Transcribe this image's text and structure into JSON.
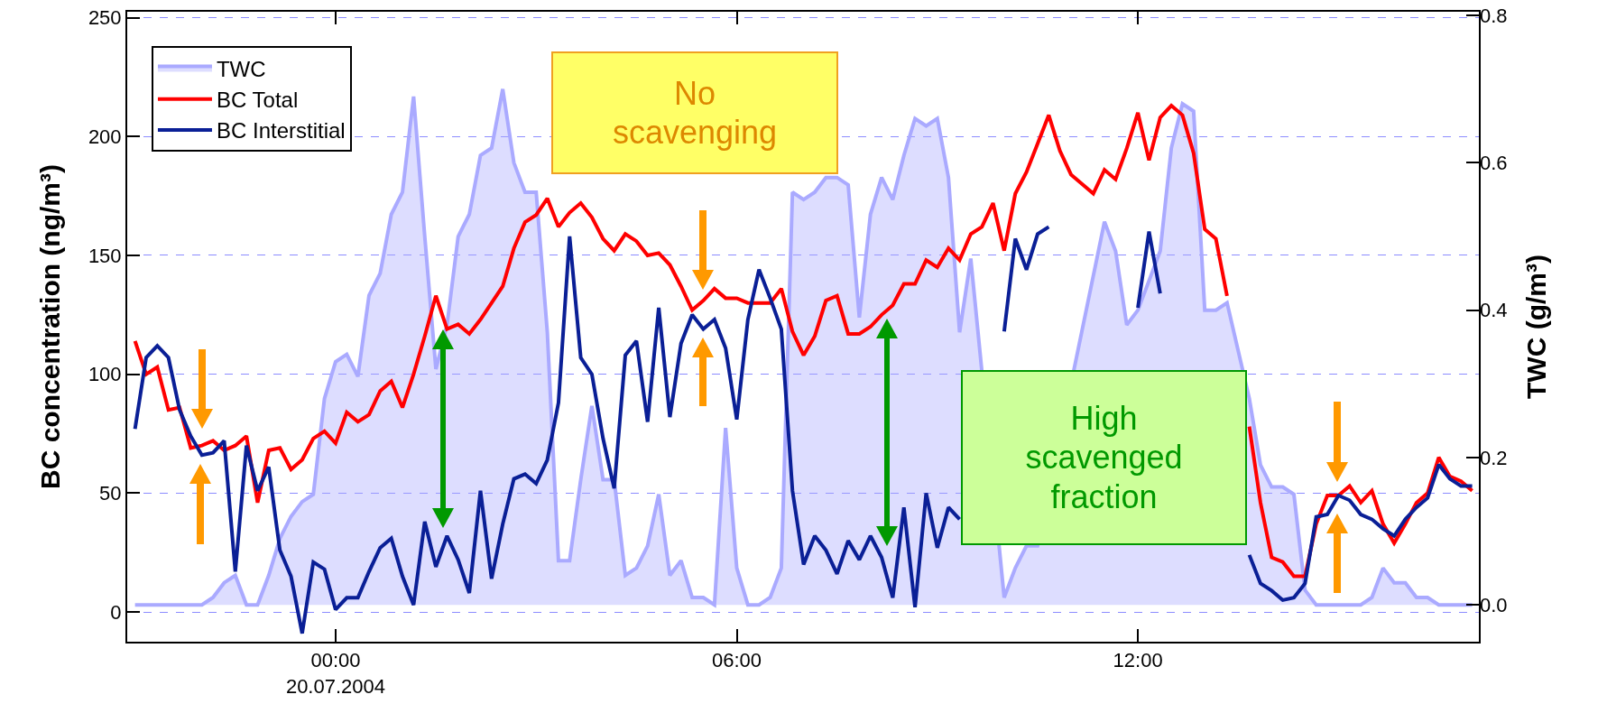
{
  "chart_data": {
    "type": "line",
    "ylabel": "BC concentration (ng/m³)",
    "y2label": "TWC (g/m³)",
    "annotations": [
      "No scavenging",
      "High scavenged fraction"
    ],
    "x": [
      "2004-07-19T21:00",
      "2004-07-19T21:10",
      "2004-07-19T21:20",
      "2004-07-19T21:30",
      "2004-07-19T21:40",
      "2004-07-19T21:50",
      "2004-07-19T22:00",
      "2004-07-19T22:10",
      "2004-07-19T22:20",
      "2004-07-19T22:30",
      "2004-07-19T22:40",
      "2004-07-19T22:50",
      "2004-07-19T23:00",
      "2004-07-19T23:10",
      "2004-07-19T23:20",
      "2004-07-19T23:30",
      "2004-07-19T23:40",
      "2004-07-19T23:50",
      "2004-07-20T00:00",
      "2004-07-20T00:10",
      "2004-07-20T00:20",
      "2004-07-20T00:30",
      "2004-07-20T00:40",
      "2004-07-20T00:50",
      "2004-07-20T01:00",
      "2004-07-20T01:10",
      "2004-07-20T01:20",
      "2004-07-20T01:30",
      "2004-07-20T01:40",
      "2004-07-20T01:50",
      "2004-07-20T02:00",
      "2004-07-20T02:10",
      "2004-07-20T02:20",
      "2004-07-20T02:30",
      "2004-07-20T02:40",
      "2004-07-20T02:50",
      "2004-07-20T03:00",
      "2004-07-20T03:10",
      "2004-07-20T03:20",
      "2004-07-20T03:30",
      "2004-07-20T03:40",
      "2004-07-20T03:50",
      "2004-07-20T04:00",
      "2004-07-20T04:10",
      "2004-07-20T04:20",
      "2004-07-20T04:30",
      "2004-07-20T04:40",
      "2004-07-20T04:50",
      "2004-07-20T05:00",
      "2004-07-20T05:10",
      "2004-07-20T05:20",
      "2004-07-20T05:30",
      "2004-07-20T05:40",
      "2004-07-20T05:50",
      "2004-07-20T06:00",
      "2004-07-20T06:10",
      "2004-07-20T06:20",
      "2004-07-20T06:30",
      "2004-07-20T06:40",
      "2004-07-20T06:50",
      "2004-07-20T07:00",
      "2004-07-20T07:10",
      "2004-07-20T07:20",
      "2004-07-20T07:30",
      "2004-07-20T07:40",
      "2004-07-20T07:50",
      "2004-07-20T08:00",
      "2004-07-20T08:10",
      "2004-07-20T08:20",
      "2004-07-20T08:30",
      "2004-07-20T08:40",
      "2004-07-20T08:50",
      "2004-07-20T09:00",
      "2004-07-20T09:10",
      "2004-07-20T09:20",
      "2004-07-20T09:30",
      "2004-07-20T09:40",
      "2004-07-20T09:50",
      "2004-07-20T10:00",
      "2004-07-20T10:10",
      "2004-07-20T10:20",
      "2004-07-20T10:30",
      "2004-07-20T10:40",
      "2004-07-20T10:50",
      "2004-07-20T11:00",
      "2004-07-20T11:10",
      "2004-07-20T11:20",
      "2004-07-20T11:30",
      "2004-07-20T11:40",
      "2004-07-20T11:50",
      "2004-07-20T12:00",
      "2004-07-20T12:10",
      "2004-07-20T12:20",
      "2004-07-20T12:30",
      "2004-07-20T12:40",
      "2004-07-20T12:50",
      "2004-07-20T13:00",
      "2004-07-20T13:10",
      "2004-07-20T13:20",
      "2004-07-20T13:30",
      "2004-07-20T13:40",
      "2004-07-20T13:50",
      "2004-07-20T14:00",
      "2004-07-20T14:10",
      "2004-07-20T14:20",
      "2004-07-20T14:30",
      "2004-07-20T14:40",
      "2004-07-20T14:50",
      "2004-07-20T15:00",
      "2004-07-20T15:10",
      "2004-07-20T15:20",
      "2004-07-20T15:30",
      "2004-07-20T15:40",
      "2004-07-20T15:50",
      "2004-07-20T16:00",
      "2004-07-20T16:10",
      "2004-07-20T16:20",
      "2004-07-20T16:30",
      "2004-07-20T16:40",
      "2004-07-20T16:50",
      "2004-07-20T17:00"
    ],
    "series": [
      {
        "name": "TWC",
        "type": "area",
        "axis": "y2",
        "color": "#aaaaff",
        "values": [
          0,
          0,
          0,
          0,
          0,
          0,
          0,
          0.01,
          0.03,
          0.04,
          0,
          0,
          0.04,
          0.09,
          0.12,
          0.14,
          0.15,
          0.28,
          0.33,
          0.34,
          0.31,
          0.42,
          0.45,
          0.53,
          0.56,
          0.69,
          0.5,
          0.32,
          0.38,
          0.5,
          0.53,
          0.61,
          0.62,
          0.7,
          0.6,
          0.56,
          0.56,
          0.37,
          0.06,
          0.06,
          0.17,
          0.27,
          0.17,
          0.17,
          0.04,
          0.05,
          0.08,
          0.15,
          0.04,
          0.06,
          0.01,
          0.01,
          0,
          0.24,
          0.05,
          0,
          0,
          0.01,
          0.05,
          0.56,
          0.55,
          0.56,
          0.58,
          0.58,
          0.57,
          0.39,
          0.53,
          0.58,
          0.55,
          0.61,
          0.66,
          0.65,
          0.66,
          0.58,
          0.37,
          0.47,
          null,
          null,
          0.01,
          0.05,
          0.08,
          0.08,
          null,
          null,
          null,
          null,
          null,
          0.52,
          0.48,
          0.38,
          0.4,
          null,
          0.48,
          0.62,
          0.68,
          0.67,
          0.4,
          0.4,
          0.41,
          null,
          0.28,
          0.19,
          0.16,
          0.16,
          0.15,
          0.02,
          0,
          0,
          0,
          0,
          0,
          0.01,
          0.05,
          0.03,
          0.03,
          0.01,
          0.01,
          0,
          0,
          0,
          0
        ]
      },
      {
        "name": "BC Total",
        "color": "#ff0000",
        "values": [
          114,
          100,
          103,
          85,
          86,
          69,
          70,
          72,
          68,
          70,
          74,
          46,
          68,
          69,
          60,
          64,
          73,
          76,
          71,
          84,
          80,
          83,
          93,
          97,
          86,
          100,
          116,
          133,
          119,
          121,
          117,
          123,
          130,
          137,
          153,
          164,
          167,
          174,
          162,
          168,
          172,
          166,
          157,
          152,
          159,
          156,
          150,
          151,
          146,
          137,
          127,
          131,
          136,
          132,
          132,
          130,
          130,
          130,
          136,
          118,
          108,
          116,
          131,
          133,
          117,
          117,
          120,
          125,
          129,
          138,
          138,
          148,
          145,
          153,
          148,
          159,
          162,
          172,
          152,
          176,
          185,
          197,
          209,
          194,
          184,
          180,
          176,
          186,
          182,
          195,
          210,
          190,
          208,
          213,
          209,
          193,
          161,
          157,
          133,
          null,
          78,
          46,
          23,
          21,
          15,
          15,
          37,
          49,
          49,
          53,
          46,
          51,
          37,
          29,
          37,
          46,
          50,
          65,
          57,
          55,
          51
        ]
      },
      {
        "name": "BC Interstitial",
        "color": "#0a1f96",
        "values": [
          77,
          107,
          112,
          107,
          85,
          74,
          66,
          67,
          72,
          17,
          70,
          51,
          61,
          26,
          15,
          -9,
          21,
          18,
          1,
          6,
          6,
          17,
          27,
          31,
          15,
          3,
          38,
          19,
          32,
          22,
          8,
          51,
          14,
          37,
          56,
          58,
          54,
          64,
          88,
          158,
          107,
          100,
          73,
          52,
          108,
          114,
          80,
          128,
          82,
          113,
          125,
          119,
          123,
          111,
          81,
          123,
          144,
          132,
          119,
          51,
          20,
          32,
          26,
          16,
          30,
          22,
          32,
          23,
          6,
          44,
          2,
          50,
          27,
          44,
          39,
          null,
          null,
          null,
          118,
          157,
          144,
          159,
          162,
          null,
          null,
          null,
          null,
          null,
          null,
          null,
          128,
          160,
          134,
          null,
          null,
          null,
          null,
          null,
          null,
          null,
          24,
          12,
          9,
          5,
          6,
          12,
          40,
          41,
          49,
          47,
          41,
          39,
          35,
          32,
          39,
          44,
          48,
          62,
          56,
          53,
          53
        ]
      }
    ],
    "xlim": [
      "2004-07-19T20:53",
      "2004-07-20T17:06"
    ],
    "xticks": [
      {
        "value": "2004-07-20T00:00",
        "label": "00:00\n20.07.2004"
      },
      {
        "value": "2004-07-20T06:00",
        "label": "06:00"
      },
      {
        "value": "2004-07-20T12:00",
        "label": "12:00"
      }
    ],
    "ylim": [
      -12.5,
      252.5
    ],
    "yticks": [
      0,
      50,
      100,
      150,
      200,
      250
    ],
    "y2lim": [
      -0.05,
      0.805
    ],
    "y2ticks": [
      {
        "value": 0,
        "label": "0.0"
      },
      {
        "value": 0.2,
        "label": "0.2"
      },
      {
        "value": 0.4,
        "label": "0.4"
      },
      {
        "value": 0.6,
        "label": "0.6"
      },
      {
        "value": 0.8,
        "label": "0.8"
      }
    ],
    "grid": "y",
    "legend": "top left"
  }
}
